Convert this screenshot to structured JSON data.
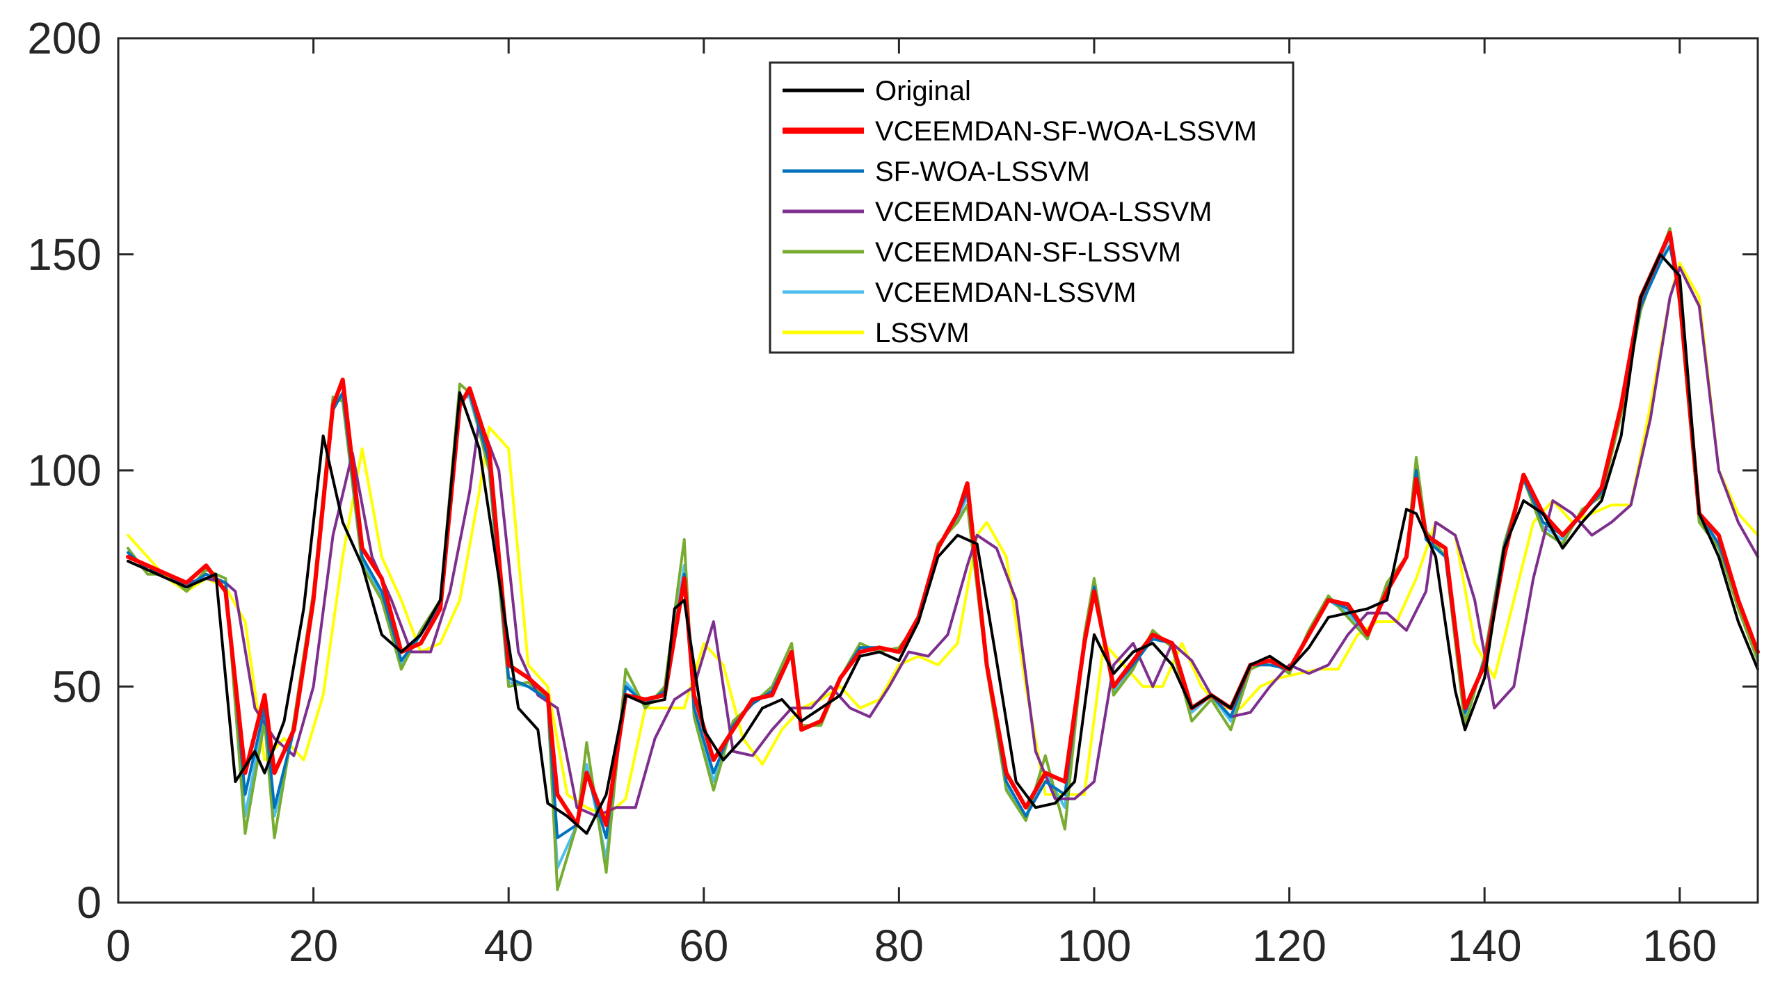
{
  "chart_data": {
    "type": "line",
    "title": "",
    "xlabel": "",
    "ylabel": "",
    "xlim": [
      0,
      168
    ],
    "ylim": [
      0,
      200
    ],
    "xticks": [
      0,
      20,
      40,
      60,
      80,
      100,
      120,
      140,
      160
    ],
    "yticks": [
      0,
      50,
      100,
      150,
      200
    ],
    "grid": false,
    "legend_position": "top-center",
    "series": [
      {
        "name": "Original",
        "color": "#000000",
        "x": [
          1,
          3,
          5,
          7,
          9,
          10,
          12,
          14,
          15,
          17,
          19,
          21,
          23,
          25,
          27,
          29,
          31,
          33,
          35,
          37,
          39,
          41,
          43,
          44,
          46,
          48,
          50,
          52,
          54,
          56,
          57,
          58,
          60,
          62,
          64,
          66,
          68,
          70,
          72,
          74,
          76,
          78,
          80,
          82,
          84,
          86,
          88,
          90,
          92,
          94,
          96,
          98,
          100,
          102,
          104,
          106,
          108,
          110,
          112,
          114,
          116,
          118,
          120,
          122,
          124,
          126,
          128,
          130,
          132,
          133,
          135,
          137,
          138,
          140,
          142,
          144,
          146,
          148,
          150,
          152,
          154,
          156,
          158,
          160,
          162,
          164,
          166,
          168
        ],
        "values": [
          79,
          77,
          75,
          73,
          75,
          76,
          28,
          35,
          30,
          42,
          68,
          108,
          88,
          78,
          62,
          58,
          62,
          70,
          118,
          105,
          75,
          45,
          40,
          23,
          20,
          16,
          25,
          48,
          46,
          47,
          68,
          70,
          40,
          33,
          38,
          45,
          47,
          42,
          45,
          48,
          57,
          58,
          56,
          65,
          80,
          85,
          83,
          56,
          28,
          22,
          23,
          28,
          62,
          53,
          58,
          60,
          55,
          45,
          48,
          45,
          55,
          57,
          54,
          59,
          66,
          67,
          68,
          70,
          91,
          90,
          80,
          49,
          40,
          52,
          82,
          93,
          90,
          82,
          88,
          93,
          108,
          140,
          150,
          145,
          90,
          80,
          65,
          54
        ]
      },
      {
        "name": "VCEEMDAN-SF-WOA-LSSVM",
        "color": "#ff0000",
        "x": [
          1,
          3,
          5,
          7,
          9,
          11,
          13,
          15,
          16,
          18,
          20,
          22,
          23,
          25,
          27,
          29,
          31,
          33,
          35,
          36,
          38,
          40,
          42,
          44,
          45,
          47,
          48,
          50,
          52,
          54,
          56,
          58,
          59,
          61,
          63,
          65,
          67,
          69,
          70,
          72,
          74,
          76,
          78,
          80,
          82,
          84,
          86,
          87,
          89,
          91,
          93,
          95,
          97,
          99,
          100,
          102,
          104,
          106,
          108,
          110,
          112,
          114,
          116,
          118,
          120,
          122,
          124,
          126,
          128,
          130,
          132,
          133,
          134,
          136,
          138,
          140,
          142,
          144,
          146,
          148,
          150,
          152,
          154,
          156,
          158,
          159,
          160,
          162,
          164,
          166,
          168
        ],
        "values": [
          80,
          78,
          76,
          74,
          78,
          72,
          30,
          48,
          30,
          40,
          70,
          115,
          121,
          82,
          75,
          58,
          60,
          68,
          115,
          119,
          105,
          55,
          52,
          48,
          25,
          18,
          30,
          18,
          48,
          47,
          48,
          75,
          48,
          33,
          40,
          47,
          48,
          58,
          40,
          42,
          52,
          58,
          59,
          58,
          66,
          82,
          90,
          97,
          55,
          30,
          22,
          30,
          28,
          60,
          72,
          50,
          56,
          62,
          60,
          45,
          48,
          45,
          55,
          56,
          54,
          62,
          70,
          69,
          62,
          72,
          80,
          98,
          85,
          82,
          45,
          55,
          80,
          99,
          90,
          85,
          90,
          96,
          115,
          140,
          150,
          155,
          140,
          90,
          85,
          70,
          58
        ]
      },
      {
        "name": "SF-WOA-LSSVM",
        "color": "#0072bd",
        "x": [
          1,
          3,
          5,
          7,
          9,
          11,
          13,
          15,
          16,
          18,
          20,
          22,
          23,
          25,
          27,
          29,
          31,
          33,
          35,
          36,
          38,
          40,
          42,
          44,
          45,
          47,
          48,
          50,
          52,
          54,
          56,
          58,
          59,
          61,
          63,
          65,
          67,
          69,
          70,
          72,
          74,
          76,
          78,
          80,
          82,
          84,
          86,
          87,
          89,
          91,
          93,
          95,
          97,
          99,
          100,
          102,
          104,
          106,
          108,
          110,
          112,
          114,
          116,
          118,
          120,
          122,
          124,
          126,
          128,
          130,
          132,
          133,
          134,
          136,
          138,
          140,
          142,
          144,
          146,
          148,
          150,
          152,
          154,
          156,
          158,
          159,
          160,
          162,
          164,
          166,
          168
        ],
        "values": [
          81,
          77,
          76,
          73,
          76,
          74,
          25,
          45,
          22,
          40,
          70,
          114,
          118,
          80,
          72,
          56,
          62,
          69,
          116,
          118,
          102,
          52,
          50,
          47,
          15,
          18,
          30,
          15,
          50,
          46,
          49,
          76,
          45,
          30,
          41,
          46,
          49,
          58,
          40,
          42,
          52,
          59,
          59,
          58,
          66,
          82,
          90,
          95,
          55,
          28,
          20,
          28,
          25,
          60,
          73,
          50,
          55,
          61,
          60,
          45,
          48,
          43,
          55,
          55,
          54,
          62,
          70,
          68,
          62,
          72,
          80,
          100,
          84,
          80,
          44,
          56,
          82,
          98,
          88,
          85,
          90,
          95,
          115,
          138,
          148,
          152,
          140,
          90,
          83,
          70,
          58
        ]
      },
      {
        "name": "VCEEMDAN-WOA-LSSVM",
        "color": "#7e2f8e",
        "x": [
          1,
          3,
          5,
          7,
          9,
          11,
          12,
          14,
          16,
          18,
          20,
          22,
          24,
          26,
          28,
          30,
          32,
          34,
          36,
          37,
          39,
          41,
          43,
          45,
          47,
          49,
          51,
          53,
          55,
          57,
          59,
          61,
          63,
          65,
          67,
          69,
          71,
          73,
          75,
          77,
          79,
          81,
          83,
          85,
          87,
          88,
          90,
          92,
          94,
          96,
          98,
          100,
          102,
          104,
          106,
          108,
          110,
          112,
          114,
          116,
          118,
          120,
          122,
          124,
          126,
          128,
          130,
          132,
          134,
          135,
          137,
          139,
          141,
          143,
          145,
          147,
          149,
          151,
          153,
          155,
          157,
          159,
          160,
          162,
          164,
          166,
          168
        ],
        "values": [
          80,
          78,
          76,
          74,
          75,
          74,
          72,
          45,
          38,
          34,
          50,
          85,
          104,
          80,
          70,
          58,
          58,
          72,
          95,
          112,
          100,
          58,
          48,
          45,
          22,
          20,
          22,
          22,
          38,
          47,
          50,
          65,
          35,
          34,
          40,
          45,
          45,
          50,
          45,
          43,
          50,
          58,
          57,
          62,
          78,
          85,
          82,
          70,
          35,
          24,
          24,
          28,
          55,
          60,
          50,
          60,
          56,
          48,
          43,
          44,
          50,
          55,
          53,
          55,
          62,
          67,
          67,
          63,
          72,
          88,
          85,
          70,
          45,
          50,
          75,
          93,
          90,
          85,
          88,
          92,
          112,
          140,
          147,
          138,
          100,
          88,
          80
        ]
      },
      {
        "name": "VCEEMDAN-SF-LSSVM",
        "color": "#77ac30",
        "x": [
          1,
          3,
          5,
          7,
          9,
          11,
          13,
          15,
          16,
          18,
          20,
          22,
          23,
          25,
          27,
          29,
          31,
          33,
          35,
          36,
          38,
          40,
          42,
          44,
          45,
          47,
          48,
          50,
          52,
          54,
          56,
          58,
          59,
          61,
          63,
          65,
          67,
          69,
          70,
          72,
          74,
          76,
          78,
          80,
          82,
          84,
          86,
          87,
          89,
          91,
          93,
          95,
          97,
          99,
          100,
          102,
          104,
          106,
          108,
          110,
          112,
          114,
          116,
          118,
          120,
          122,
          124,
          126,
          128,
          130,
          132,
          133,
          134,
          136,
          138,
          140,
          142,
          144,
          146,
          148,
          150,
          152,
          154,
          156,
          158,
          159,
          160,
          162,
          164,
          166,
          168
        ],
        "values": [
          82,
          76,
          76,
          72,
          77,
          75,
          16,
          42,
          15,
          42,
          72,
          117,
          116,
          78,
          70,
          54,
          63,
          70,
          120,
          118,
          100,
          50,
          51,
          47,
          3,
          18,
          37,
          7,
          54,
          45,
          50,
          84,
          43,
          26,
          42,
          46,
          50,
          60,
          41,
          41,
          52,
          60,
          58,
          59,
          65,
          83,
          88,
          92,
          54,
          26,
          19,
          34,
          17,
          62,
          75,
          48,
          54,
          63,
          59,
          42,
          47,
          40,
          54,
          56,
          53,
          63,
          71,
          66,
          61,
          74,
          80,
          103,
          86,
          80,
          41,
          57,
          83,
          98,
          86,
          83,
          91,
          94,
          113,
          137,
          150,
          156,
          138,
          88,
          82,
          68,
          56
        ]
      },
      {
        "name": "VCEEMDAN-LSSVM",
        "color": "#4dbeee",
        "x": [
          1,
          3,
          5,
          7,
          9,
          11,
          13,
          15,
          16,
          18,
          20,
          22,
          23,
          25,
          27,
          29,
          31,
          33,
          35,
          36,
          38,
          40,
          42,
          44,
          45,
          47,
          48,
          50,
          52,
          54,
          56,
          58,
          59,
          61,
          63,
          65,
          67,
          69,
          70,
          72,
          74,
          76,
          78,
          80,
          82,
          84,
          86,
          87,
          89,
          91,
          93,
          95,
          97,
          99,
          100,
          102,
          104,
          106,
          108,
          110,
          112,
          114,
          116,
          118,
          120,
          122,
          124,
          126,
          128,
          130,
          132,
          133,
          134,
          136,
          138,
          140,
          142,
          144,
          146,
          148,
          150,
          152,
          154,
          156,
          158,
          159,
          160,
          162,
          164,
          166,
          168
        ],
        "values": [
          81,
          77,
          75,
          73,
          76,
          74,
          20,
          44,
          20,
          40,
          70,
          115,
          117,
          79,
          71,
          55,
          62,
          69,
          117,
          117,
          101,
          51,
          50,
          47,
          8,
          18,
          32,
          10,
          51,
          46,
          49,
          78,
          44,
          28,
          41,
          46,
          49,
          58,
          40,
          42,
          52,
          59,
          59,
          58,
          66,
          82,
          89,
          94,
          55,
          27,
          20,
          30,
          22,
          61,
          74,
          49,
          55,
          62,
          60,
          44,
          48,
          42,
          55,
          55,
          54,
          62,
          70,
          67,
          62,
          73,
          80,
          101,
          85,
          80,
          43,
          56,
          82,
          98,
          87,
          84,
          90,
          95,
          114,
          138,
          149,
          154,
          139,
          89,
          83,
          69,
          57
        ]
      },
      {
        "name": "LSSVM",
        "color": "#ffff00",
        "x": [
          1,
          3,
          5,
          7,
          9,
          11,
          13,
          15,
          17,
          19,
          21,
          23,
          25,
          27,
          29,
          31,
          33,
          35,
          37,
          38,
          40,
          42,
          44,
          46,
          48,
          50,
          52,
          54,
          56,
          58,
          60,
          62,
          64,
          66,
          68,
          70,
          72,
          74,
          76,
          78,
          80,
          82,
          84,
          86,
          88,
          89,
          91,
          93,
          95,
          97,
          99,
          101,
          103,
          105,
          107,
          109,
          111,
          113,
          115,
          117,
          119,
          121,
          123,
          125,
          127,
          129,
          131,
          133,
          135,
          137,
          139,
          141,
          143,
          145,
          147,
          149,
          151,
          153,
          155,
          157,
          159,
          160,
          162,
          164,
          166,
          168
        ],
        "values": [
          85,
          80,
          75,
          72,
          75,
          73,
          65,
          33,
          38,
          33,
          48,
          80,
          105,
          80,
          70,
          58,
          60,
          70,
          95,
          110,
          105,
          55,
          50,
          25,
          22,
          20,
          24,
          45,
          45,
          45,
          60,
          55,
          38,
          32,
          40,
          45,
          47,
          50,
          45,
          47,
          55,
          57,
          55,
          60,
          85,
          88,
          80,
          50,
          25,
          25,
          25,
          60,
          55,
          50,
          50,
          60,
          50,
          45,
          45,
          50,
          52,
          53,
          54,
          54,
          62,
          65,
          65,
          75,
          88,
          85,
          60,
          52,
          70,
          88,
          93,
          88,
          90,
          92,
          92,
          115,
          140,
          148,
          140,
          100,
          90,
          85
        ]
      }
    ]
  }
}
